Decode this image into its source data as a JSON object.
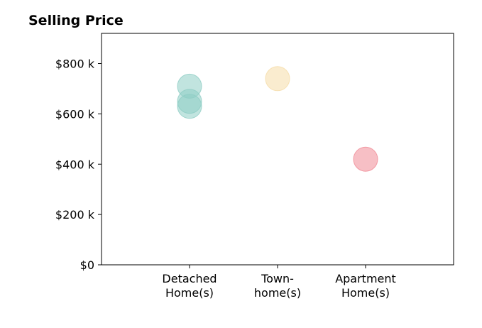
{
  "chart_data": {
    "type": "scatter",
    "title": "Selling Price",
    "xlabel": "",
    "ylabel": "",
    "categories": [
      [
        "Detached",
        "Home(s)"
      ],
      [
        "Town-",
        "home(s)"
      ],
      [
        "Apartment",
        "Home(s)"
      ]
    ],
    "ylim": [
      0,
      920000
    ],
    "yticks": [
      0,
      200000,
      400000,
      600000,
      800000
    ],
    "ytick_labels": [
      "$0",
      "$200 k",
      "$400 k",
      "$600 k",
      "$800 k"
    ],
    "grid": false,
    "points": [
      {
        "category": 0,
        "value": 710000,
        "color": "#8ecdc4"
      },
      {
        "category": 0,
        "value": 650000,
        "color": "#8ecdc4"
      },
      {
        "category": 0,
        "value": 630000,
        "color": "#8ecdc4"
      },
      {
        "category": 1,
        "value": 740000,
        "color": "#f5dca8"
      },
      {
        "category": 2,
        "value": 420000,
        "color": "#f08a95"
      }
    ]
  }
}
